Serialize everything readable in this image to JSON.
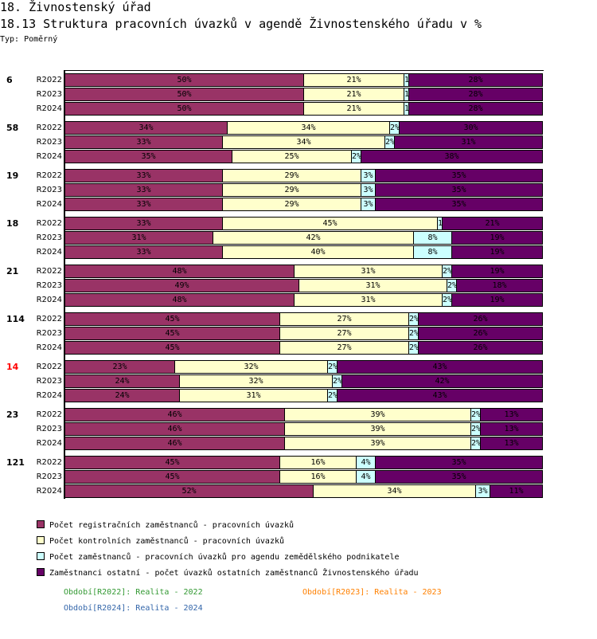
{
  "header": {
    "title": "18. Živnostenský úřad",
    "subtitle": "18.13 Struktura pracovních úvazků v agendě Živnostenského úřadu v %",
    "type_label": "Typ: Poměrný"
  },
  "chart_data": {
    "type": "bar",
    "orientation": "horizontal",
    "stacked": true,
    "normalized": true,
    "title": "18.13 Struktura pracovních úvazků v agendě Živnostenského úřadu v %",
    "xlim": [
      0,
      100
    ],
    "unit": "%",
    "series": [
      {
        "name": "Počet registračních zaměstnanců - pracovních úvazků",
        "color": "#993366"
      },
      {
        "name": "Počet kontrolních zaměstnanců - pracovních úvazků",
        "color": "#ffffcc"
      },
      {
        "name": "Počet zaměstnanců - pracovních úvazků pro agendu zemědělského podnikatele",
        "color": "#ccffff"
      },
      {
        "name": "Zaměstnanci ostatní - počet úvazků ostatních zaměstnanců Živnostenského úřadu",
        "color": "#660066"
      }
    ],
    "groups": [
      {
        "label": "6",
        "highlight": false,
        "rows": [
          {
            "period": "R2022",
            "values": [
              50,
              21,
              1,
              28
            ]
          },
          {
            "period": "R2023",
            "values": [
              50,
              21,
              1,
              28
            ]
          },
          {
            "period": "R2024",
            "values": [
              50,
              21,
              1,
              28
            ]
          }
        ]
      },
      {
        "label": "58",
        "highlight": false,
        "rows": [
          {
            "period": "R2022",
            "values": [
              34,
              34,
              2,
              30
            ]
          },
          {
            "period": "R2023",
            "values": [
              33,
              34,
              2,
              31
            ]
          },
          {
            "period": "R2024",
            "values": [
              35,
              25,
              2,
              38
            ]
          }
        ]
      },
      {
        "label": "19",
        "highlight": false,
        "rows": [
          {
            "period": "R2022",
            "values": [
              33,
              29,
              3,
              35
            ]
          },
          {
            "period": "R2023",
            "values": [
              33,
              29,
              3,
              35
            ]
          },
          {
            "period": "R2024",
            "values": [
              33,
              29,
              3,
              35
            ]
          }
        ]
      },
      {
        "label": "18",
        "highlight": false,
        "rows": [
          {
            "period": "R2022",
            "values": [
              33,
              45,
              1,
              21
            ]
          },
          {
            "period": "R2023",
            "values": [
              31,
              42,
              8,
              19
            ]
          },
          {
            "period": "R2024",
            "values": [
              33,
              40,
              8,
              19
            ]
          }
        ]
      },
      {
        "label": "21",
        "highlight": false,
        "rows": [
          {
            "period": "R2022",
            "values": [
              48,
              31,
              2,
              19
            ]
          },
          {
            "period": "R2023",
            "values": [
              49,
              31,
              2,
              18
            ]
          },
          {
            "period": "R2024",
            "values": [
              48,
              31,
              2,
              19
            ]
          }
        ]
      },
      {
        "label": "114",
        "highlight": false,
        "rows": [
          {
            "period": "R2022",
            "values": [
              45,
              27,
              2,
              26
            ]
          },
          {
            "period": "R2023",
            "values": [
              45,
              27,
              2,
              26
            ]
          },
          {
            "period": "R2024",
            "values": [
              45,
              27,
              2,
              26
            ]
          }
        ]
      },
      {
        "label": "14",
        "highlight": true,
        "rows": [
          {
            "period": "R2022",
            "values": [
              23,
              32,
              2,
              43
            ]
          },
          {
            "period": "R2023",
            "values": [
              24,
              32,
              2,
              42
            ]
          },
          {
            "period": "R2024",
            "values": [
              24,
              31,
              2,
              43
            ]
          }
        ]
      },
      {
        "label": "23",
        "highlight": false,
        "rows": [
          {
            "period": "R2022",
            "values": [
              46,
              39,
              2,
              13
            ]
          },
          {
            "period": "R2023",
            "values": [
              46,
              39,
              2,
              13
            ]
          },
          {
            "period": "R2024",
            "values": [
              46,
              39,
              2,
              13
            ]
          }
        ]
      },
      {
        "label": "121",
        "highlight": false,
        "rows": [
          {
            "period": "R2022",
            "values": [
              45,
              16,
              4,
              35
            ]
          },
          {
            "period": "R2023",
            "values": [
              45,
              16,
              4,
              35
            ]
          },
          {
            "period": "R2024",
            "values": [
              52,
              34,
              3,
              11
            ]
          }
        ]
      }
    ],
    "highlight_color": "#ff0000",
    "periods": [
      {
        "text": "Období[R2022]: Realita - 2022",
        "color": "#339933"
      },
      {
        "text": "Období[R2023]: Realita - 2023",
        "color": "#ff8000"
      },
      {
        "text": "Období[R2024]: Realita - 2024",
        "color": "#3366aa"
      }
    ]
  }
}
